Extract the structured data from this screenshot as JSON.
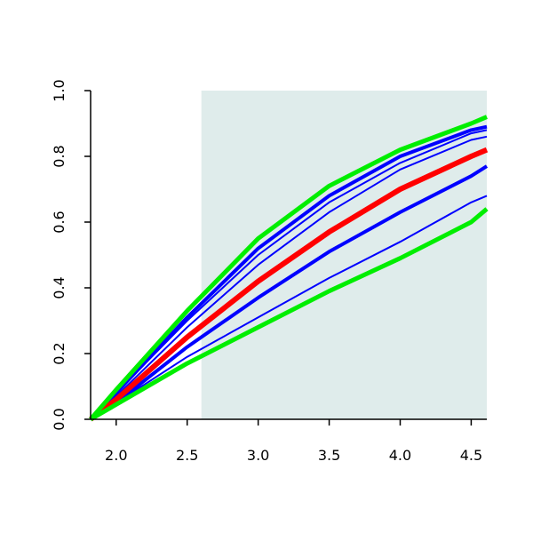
{
  "chart_data": {
    "type": "line",
    "x": [
      1.82,
      2.0,
      2.5,
      3.0,
      3.5,
      4.0,
      4.5,
      4.61
    ],
    "series": [
      {
        "color": "#0000ff",
        "values": [
          0,
          0.08,
          0.31,
          0.52,
          0.68,
          0.8,
          0.88,
          0.89
        ]
      },
      {
        "color": "#0000ff",
        "values": [
          0,
          0.08,
          0.3,
          0.5,
          0.66,
          0.78,
          0.87,
          0.88
        ]
      },
      {
        "color": "#0000ff",
        "values": [
          0,
          0.07,
          0.28,
          0.47,
          0.63,
          0.76,
          0.85,
          0.86
        ]
      },
      {
        "color": "#0000ff",
        "values": [
          0,
          0.05,
          0.22,
          0.37,
          0.51,
          0.63,
          0.74,
          0.77
        ]
      },
      {
        "color": "#0000ff",
        "values": [
          0,
          0.05,
          0.19,
          0.31,
          0.43,
          0.54,
          0.66,
          0.68
        ]
      },
      {
        "color": "#ff0000",
        "values": [
          0,
          0.06,
          0.25,
          0.42,
          0.57,
          0.7,
          0.8,
          0.82
        ]
      },
      {
        "color": "#00ee00",
        "values": [
          0,
          0.09,
          0.33,
          0.55,
          0.71,
          0.82,
          0.9,
          0.92
        ]
      },
      {
        "color": "#00ee00",
        "values": [
          0,
          0.045,
          0.17,
          0.28,
          0.39,
          0.49,
          0.6,
          0.64
        ]
      }
    ],
    "shaded_from": 2.6,
    "shade_color": "#dfeceb",
    "xlim": [
      1.82,
      4.61
    ],
    "ylim": [
      0,
      1
    ],
    "xticks": [
      {
        "value": 2,
        "label": "2.0"
      },
      2.5,
      {
        "value": 3,
        "label": "3.0"
      },
      3.5,
      {
        "value": 4,
        "label": "4.0"
      },
      4.5
    ],
    "yticks": [
      {
        "value": 0,
        "label": "0.0"
      },
      0.2,
      0.4,
      0.6,
      0.8,
      {
        "value": 1,
        "label": "1.0"
      }
    ]
  }
}
